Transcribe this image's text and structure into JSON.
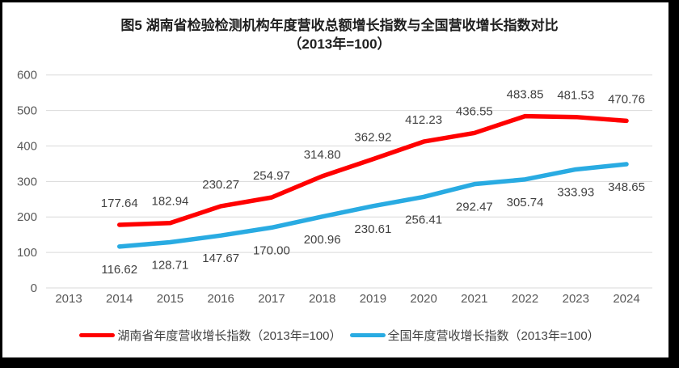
{
  "title": {
    "line1": "图5 湖南省检验检测机构年度营收总额增长指数与全国营收增长指数对比",
    "line2": "（2013年=100）"
  },
  "chart_data": {
    "type": "line",
    "categories": [
      "2013",
      "2014",
      "2015",
      "2016",
      "2017",
      "2018",
      "2019",
      "2020",
      "2021",
      "2022",
      "2023",
      "2024"
    ],
    "series": [
      {
        "name": "湖南省年度营收增长指数（2013年=100）",
        "color": "#FF0000",
        "start_index": 1,
        "values": [
          "177.64",
          "182.94",
          "230.27",
          "254.97",
          "314.80",
          "362.92",
          "412.23",
          "436.55",
          "483.85",
          "481.53",
          "470.76"
        ],
        "label_offset": -27
      },
      {
        "name": "全国年度营收增长指数（2013年=100）",
        "color": "#29ABE2",
        "start_index": 1,
        "values": [
          "116.62",
          "128.71",
          "147.67",
          "170.00",
          "200.96",
          "230.61",
          "256.41",
          "292.47",
          "305.74",
          "333.93",
          "348.65"
        ],
        "label_offset": 28
      }
    ],
    "ylim": [
      0,
      600
    ],
    "yticks": [
      "0",
      "100",
      "200",
      "300",
      "400",
      "500",
      "600"
    ],
    "grid": true,
    "legend_position": "bottom",
    "colors": {
      "gridline": "#D9D9D9",
      "axis_label": "#595959",
      "data_label": "#404040",
      "frame_border": "#000000"
    }
  }
}
